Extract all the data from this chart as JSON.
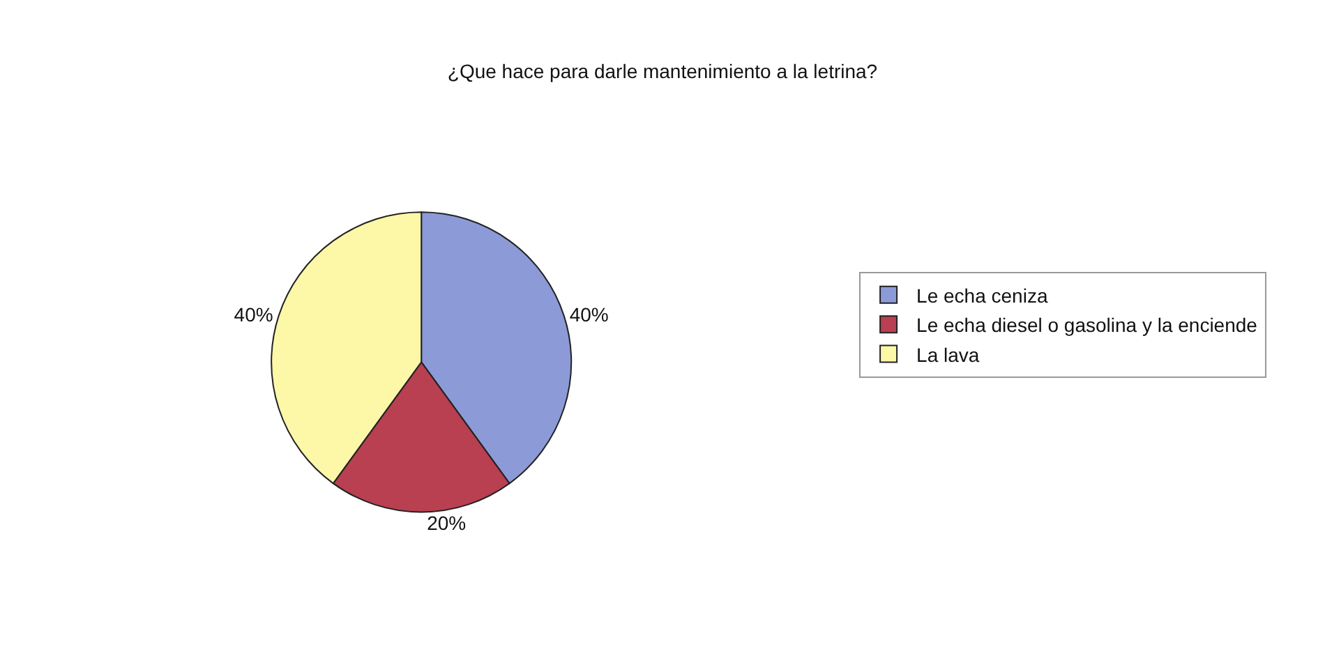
{
  "chart_data": {
    "type": "pie",
    "title": "¿Que hace para darle mantenimiento a la letrina?",
    "categories": [
      "Le echa ceniza",
      "Le echa diesel o gasolina y la enciende",
      "La lava"
    ],
    "values": [
      40,
      20,
      40
    ],
    "colors": [
      "#8c9ad8",
      "#b84050",
      "#fdf7a8"
    ],
    "value_labels": [
      "40%",
      "20%",
      "40%"
    ],
    "legend": "right"
  }
}
